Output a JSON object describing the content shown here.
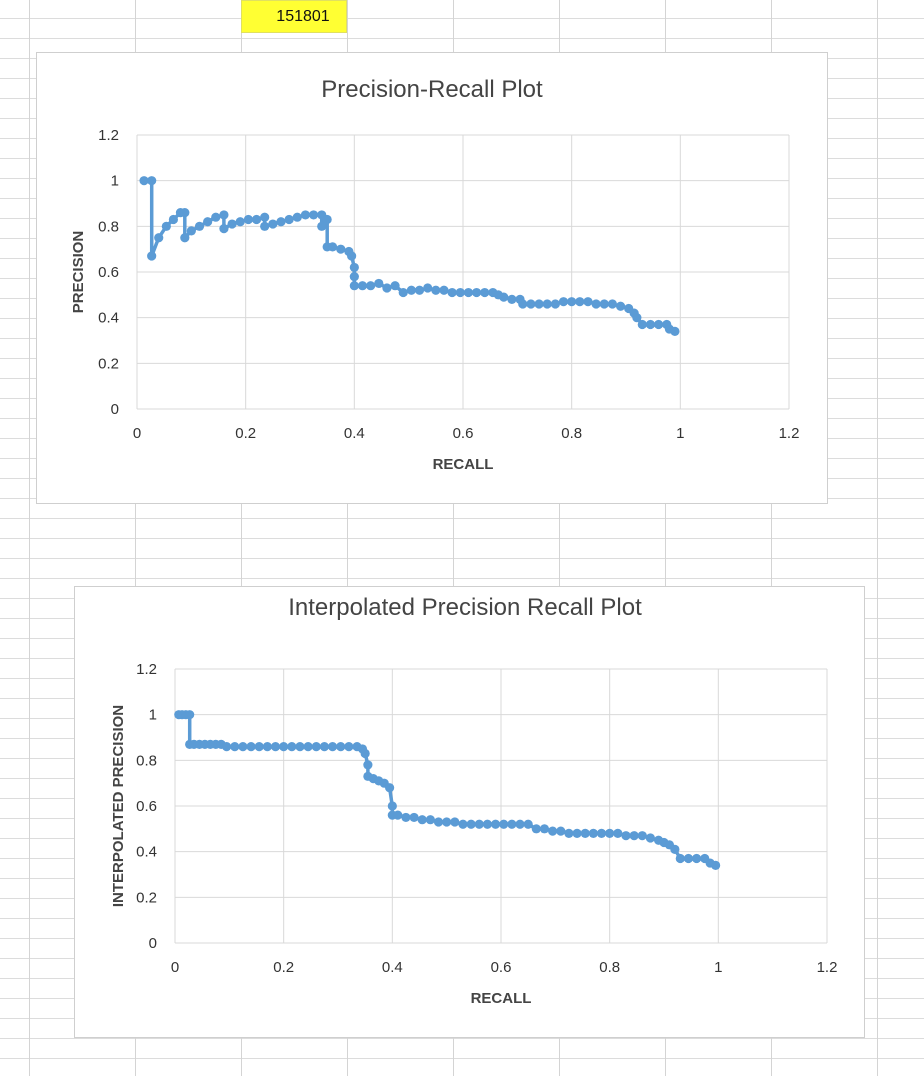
{
  "sheet": {
    "highlighted_cell_value": "151801",
    "colors": {
      "highlight": "#ffff33",
      "series": "#5b9bd5",
      "grid": "#d9d9d9"
    }
  },
  "chart_data": [
    {
      "type": "line",
      "title": "Precision-Recall Plot",
      "xlabel": "RECALL",
      "ylabel": "PRECISION",
      "xlim": [
        0,
        1.2
      ],
      "ylim": [
        0,
        1.2
      ],
      "xticks": [
        "0",
        "0.2",
        "0.4",
        "0.6",
        "0.8",
        "1",
        "1.2"
      ],
      "yticks": [
        "0",
        "0.2",
        "0.4",
        "0.6",
        "0.8",
        "1",
        "1.2"
      ],
      "grid": true,
      "markers": true,
      "series": [
        {
          "x": [
            0.013,
            0.027,
            0.027,
            0.04,
            0.054,
            0.067,
            0.08,
            0.088,
            0.088,
            0.1,
            0.115,
            0.13,
            0.145,
            0.16,
            0.16,
            0.175,
            0.19,
            0.205,
            0.22,
            0.235,
            0.235,
            0.25,
            0.265,
            0.28,
            0.295,
            0.31,
            0.325,
            0.34,
            0.34,
            0.35,
            0.35,
            0.36,
            0.375,
            0.39,
            0.395,
            0.4,
            0.4,
            0.4,
            0.415,
            0.43,
            0.445,
            0.46,
            0.475,
            0.49,
            0.505,
            0.52,
            0.535,
            0.55,
            0.565,
            0.58,
            0.595,
            0.61,
            0.625,
            0.64,
            0.655,
            0.665,
            0.675,
            0.69,
            0.705,
            0.71,
            0.725,
            0.74,
            0.755,
            0.77,
            0.785,
            0.8,
            0.815,
            0.83,
            0.845,
            0.86,
            0.875,
            0.89,
            0.905,
            0.915,
            0.92,
            0.93,
            0.945,
            0.96,
            0.975,
            0.98,
            0.99
          ],
          "y": [
            1.0,
            1.0,
            0.67,
            0.75,
            0.8,
            0.83,
            0.86,
            0.86,
            0.75,
            0.78,
            0.8,
            0.82,
            0.84,
            0.85,
            0.79,
            0.81,
            0.82,
            0.83,
            0.83,
            0.84,
            0.8,
            0.81,
            0.82,
            0.83,
            0.84,
            0.85,
            0.85,
            0.85,
            0.8,
            0.83,
            0.71,
            0.71,
            0.7,
            0.69,
            0.67,
            0.62,
            0.58,
            0.54,
            0.54,
            0.54,
            0.55,
            0.53,
            0.54,
            0.51,
            0.52,
            0.52,
            0.53,
            0.52,
            0.52,
            0.51,
            0.51,
            0.51,
            0.51,
            0.51,
            0.51,
            0.5,
            0.49,
            0.48,
            0.48,
            0.46,
            0.46,
            0.46,
            0.46,
            0.46,
            0.47,
            0.47,
            0.47,
            0.47,
            0.46,
            0.46,
            0.46,
            0.45,
            0.44,
            0.42,
            0.4,
            0.37,
            0.37,
            0.37,
            0.37,
            0.35,
            0.34
          ]
        }
      ]
    },
    {
      "type": "line",
      "title": "Interpolated Precision Recall Plot",
      "xlabel": "RECALL",
      "ylabel": "INTERPOLATED PRECISION",
      "xlim": [
        0,
        1.2
      ],
      "ylim": [
        0,
        1.2
      ],
      "xticks": [
        "0",
        "0.2",
        "0.4",
        "0.6",
        "0.8",
        "1",
        "1.2"
      ],
      "yticks": [
        "0",
        "0.2",
        "0.4",
        "0.6",
        "0.8",
        "1",
        "1.2"
      ],
      "grid": true,
      "markers": true,
      "series": [
        {
          "x": [
            0.007,
            0.013,
            0.02,
            0.027,
            0.027,
            0.035,
            0.045,
            0.055,
            0.065,
            0.075,
            0.085,
            0.095,
            0.11,
            0.125,
            0.14,
            0.155,
            0.17,
            0.185,
            0.2,
            0.215,
            0.23,
            0.245,
            0.26,
            0.275,
            0.29,
            0.305,
            0.32,
            0.335,
            0.345,
            0.35,
            0.355,
            0.355,
            0.365,
            0.375,
            0.385,
            0.395,
            0.4,
            0.4,
            0.41,
            0.425,
            0.44,
            0.455,
            0.47,
            0.485,
            0.5,
            0.515,
            0.53,
            0.545,
            0.56,
            0.575,
            0.59,
            0.605,
            0.62,
            0.635,
            0.65,
            0.665,
            0.68,
            0.695,
            0.71,
            0.725,
            0.74,
            0.755,
            0.77,
            0.785,
            0.8,
            0.815,
            0.83,
            0.845,
            0.86,
            0.875,
            0.89,
            0.9,
            0.91,
            0.92,
            0.93,
            0.945,
            0.96,
            0.975,
            0.985,
            0.995
          ],
          "y": [
            1.0,
            1.0,
            1.0,
            1.0,
            0.87,
            0.87,
            0.87,
            0.87,
            0.87,
            0.87,
            0.87,
            0.86,
            0.86,
            0.86,
            0.86,
            0.86,
            0.86,
            0.86,
            0.86,
            0.86,
            0.86,
            0.86,
            0.86,
            0.86,
            0.86,
            0.86,
            0.86,
            0.86,
            0.85,
            0.83,
            0.78,
            0.73,
            0.72,
            0.71,
            0.7,
            0.68,
            0.6,
            0.56,
            0.56,
            0.55,
            0.55,
            0.54,
            0.54,
            0.53,
            0.53,
            0.53,
            0.52,
            0.52,
            0.52,
            0.52,
            0.52,
            0.52,
            0.52,
            0.52,
            0.52,
            0.5,
            0.5,
            0.49,
            0.49,
            0.48,
            0.48,
            0.48,
            0.48,
            0.48,
            0.48,
            0.48,
            0.47,
            0.47,
            0.47,
            0.46,
            0.45,
            0.44,
            0.43,
            0.41,
            0.37,
            0.37,
            0.37,
            0.37,
            0.35,
            0.34
          ]
        }
      ]
    }
  ]
}
